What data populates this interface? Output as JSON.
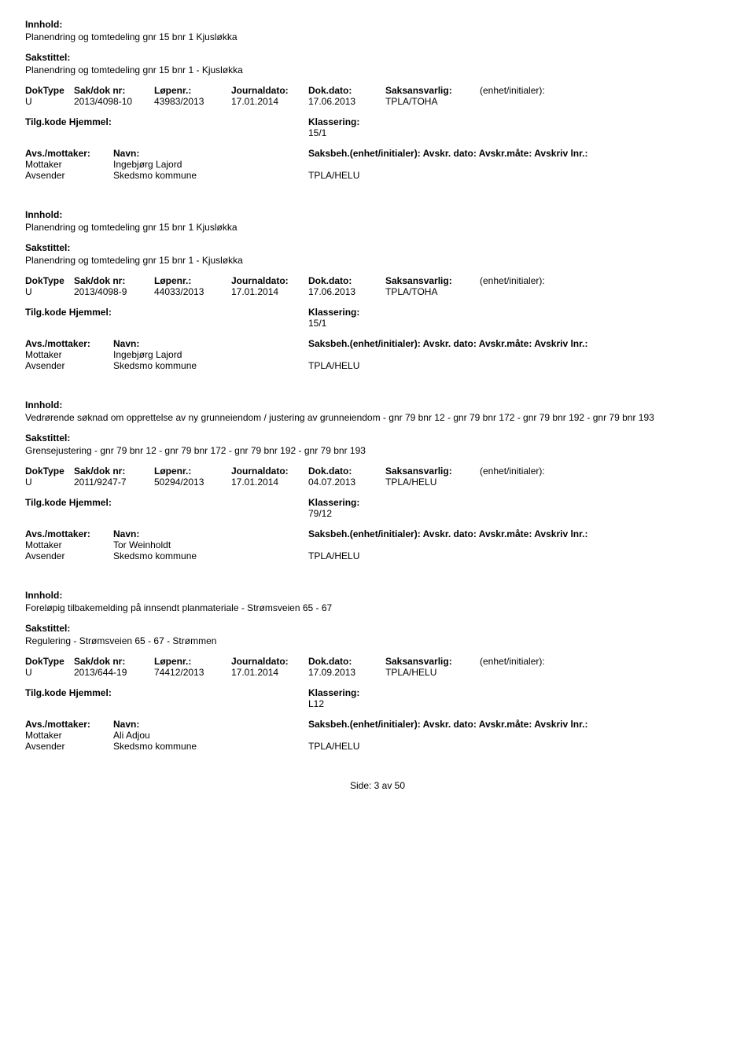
{
  "labels": {
    "innhold": "Innhold:",
    "sakstittel": "Sakstittel:",
    "doktype": "DokType",
    "sakdoknr": "Sak/dok nr:",
    "lopenr": "Løpenr.:",
    "journaldato": "Journaldato:",
    "dokdato": "Dok.dato:",
    "saksansvarlig": "Saksansvarlig:",
    "enhet": "(enhet/initialer):",
    "tilgkode": "Tilg.kode",
    "hjemmel": "Hjemmel:",
    "klassering": "Klassering:",
    "avsmottaker": "Avs./mottaker:",
    "navn": "Navn:",
    "saksbeh": "Saksbeh.(enhet/initialer): Avskr. dato:  Avskr.måte:  Avskriv lnr.:",
    "mottaker": "Mottaker",
    "avsender": "Avsender"
  },
  "records": [
    {
      "innhold": "Planendring og tomtedeling gnr 15 bnr 1 Kjusløkka",
      "sakstittel": "Planendring og tomtedeling gnr 15 bnr 1 - Kjusløkka",
      "doktype": "U",
      "sakdoknr": "2013/4098-10",
      "lopenr": "43983/2013",
      "journaldato": "17.01.2014",
      "dokdato": "17.06.2013",
      "saksansvarlig": "TPLA/TOHA",
      "klassering": "15/1",
      "mottaker_navn": "Ingebjørg Lajord",
      "avsender_navn": "Skedsmo kommune",
      "saksbeh_unit": "TPLA/HELU"
    },
    {
      "innhold": "Planendring og tomtedeling gnr 15 bnr 1 Kjusløkka",
      "sakstittel": "Planendring og tomtedeling gnr 15 bnr 1 - Kjusløkka",
      "doktype": "U",
      "sakdoknr": "2013/4098-9",
      "lopenr": "44033/2013",
      "journaldato": "17.01.2014",
      "dokdato": "17.06.2013",
      "saksansvarlig": "TPLA/TOHA",
      "klassering": "15/1",
      "mottaker_navn": "Ingebjørg Lajord",
      "avsender_navn": "Skedsmo kommune",
      "saksbeh_unit": "TPLA/HELU"
    },
    {
      "innhold": "Vedrørende søknad om opprettelse av ny grunneiendom / justering av grunneiendom - gnr 79 bnr 12 - gnr 79 bnr 172 - gnr 79 bnr 192 - gnr 79 bnr 193",
      "sakstittel": "Grensejustering - gnr 79 bnr 12 - gnr 79 bnr 172 - gnr 79 bnr 192 - gnr 79 bnr 193",
      "doktype": "U",
      "sakdoknr": "2011/9247-7",
      "lopenr": "50294/2013",
      "journaldato": "17.01.2014",
      "dokdato": "04.07.2013",
      "saksansvarlig": "TPLA/HELU",
      "klassering": "79/12",
      "mottaker_navn": "Tor Weinholdt",
      "avsender_navn": "Skedsmo kommune",
      "saksbeh_unit": "TPLA/HELU"
    },
    {
      "innhold": "Foreløpig tilbakemelding på innsendt planmateriale - Strømsveien 65 - 67",
      "sakstittel": "Regulering - Strømsveien 65 - 67 - Strømmen",
      "doktype": "U",
      "sakdoknr": "2013/644-19",
      "lopenr": "74412/2013",
      "journaldato": "17.01.2014",
      "dokdato": "17.09.2013",
      "saksansvarlig": "TPLA/HELU",
      "klassering": "L12",
      "mottaker_navn": "Ali Adjou",
      "avsender_navn": "Skedsmo kommune",
      "saksbeh_unit": "TPLA/HELU"
    }
  ],
  "footer": "Side: 3 av 50"
}
